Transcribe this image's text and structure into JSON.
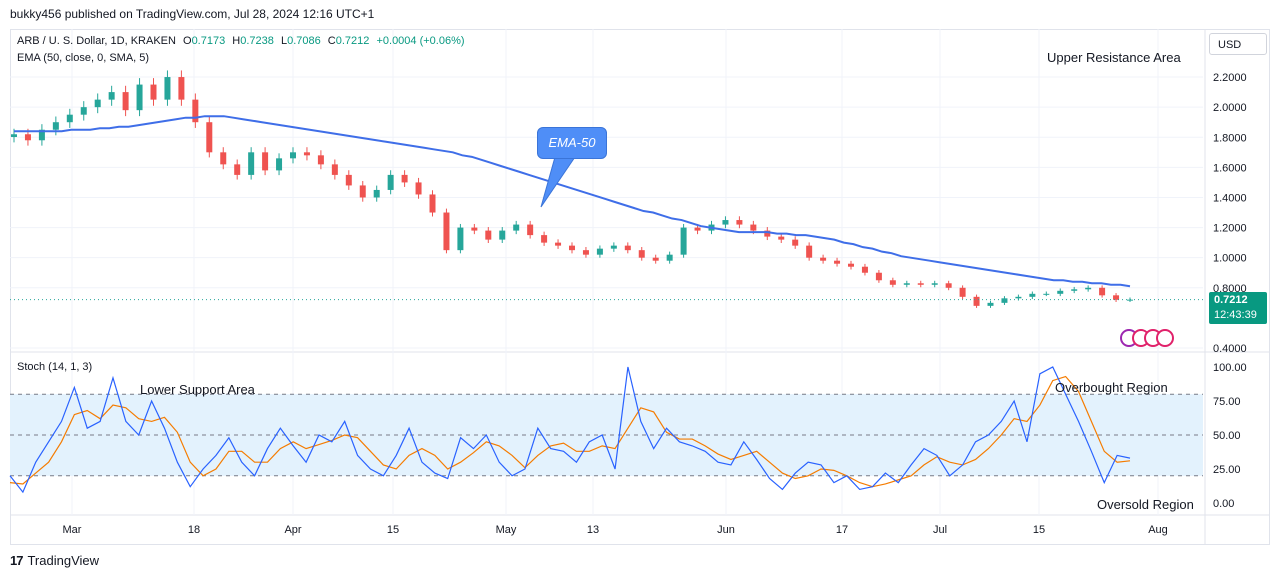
{
  "header": {
    "publish_line": "bukky456 published on TradingView.com, Jul 28, 2024 12:16 UTC+1"
  },
  "legend": {
    "symbol": "ARB / U. S. Dollar, 1D, KRAKEN",
    "o_label": "O",
    "o": "0.7173",
    "h_label": "H",
    "h": "0.7238",
    "l_label": "L",
    "l": "0.7086",
    "c_label": "C",
    "c": "0.7212",
    "change": "+0.0004 (+0.06%)",
    "ema": "EMA (50, close, 0, SMA, 5)",
    "stoch": "Stoch (14, 1, 3)"
  },
  "currency": "USD",
  "price_tag": {
    "price": "0.7212",
    "countdown": "12:43:39"
  },
  "annotations": {
    "upper_resistance": "Upper Resistance Area",
    "lower_support": "Lower Support Area",
    "overbought": "Overbought Region",
    "oversold": "Oversold Region",
    "ema_callout": "EMA-50"
  },
  "footer": {
    "brand": "TradingView"
  },
  "colors": {
    "up": "#26a69a",
    "down": "#ef5350",
    "ema": "#3f6ee8",
    "stoch_k": "#2962ff",
    "stoch_d": "#f57c00",
    "band": "#e3f2fd"
  },
  "chart_data": [
    {
      "type": "candlestick",
      "title": "ARB / U. S. Dollar, 1D, KRAKEN",
      "y_ticks": [
        "2.2000",
        "2.0000",
        "1.8000",
        "1.6000",
        "1.4000",
        "1.2000",
        "1.0000",
        "0.8000",
        "0.4000"
      ],
      "x_ticks": [
        "Mar",
        "18",
        "Apr",
        "15",
        "May",
        "13",
        "Jun",
        "17",
        "Jul",
        "15",
        "Aug"
      ],
      "ylim": [
        0.4,
        2.3
      ],
      "last_price": 0.7212,
      "series": [
        {
          "name": "EMA (50, close, 0, SMA, 5)",
          "type": "line",
          "values": [
            1.84,
            1.84,
            1.84,
            1.84,
            1.84,
            1.84,
            1.85,
            1.85,
            1.85,
            1.86,
            1.86,
            1.87,
            1.87,
            1.88,
            1.89,
            1.9,
            1.91,
            1.92,
            1.93,
            1.93,
            1.94,
            1.94,
            1.94,
            1.93,
            1.92,
            1.91,
            1.9,
            1.89,
            1.88,
            1.87,
            1.86,
            1.85,
            1.84,
            1.83,
            1.82,
            1.81,
            1.8,
            1.79,
            1.78,
            1.77,
            1.76,
            1.75,
            1.74,
            1.73,
            1.72,
            1.71,
            1.7,
            1.68,
            1.67,
            1.65,
            1.63,
            1.61,
            1.59,
            1.57,
            1.55,
            1.53,
            1.51,
            1.49,
            1.47,
            1.45,
            1.43,
            1.41,
            1.39,
            1.37,
            1.35,
            1.33,
            1.31,
            1.3,
            1.28,
            1.26,
            1.25,
            1.23,
            1.21,
            1.2,
            1.19,
            1.18,
            1.17,
            1.17,
            1.17,
            1.17,
            1.16,
            1.16,
            1.15,
            1.15,
            1.14,
            1.13,
            1.12,
            1.1,
            1.09,
            1.07,
            1.06,
            1.04,
            1.03,
            1.01,
            1.0,
            0.99,
            0.98,
            0.97,
            0.96,
            0.95,
            0.94,
            0.93,
            0.92,
            0.91,
            0.9,
            0.89,
            0.88,
            0.87,
            0.86,
            0.85,
            0.85,
            0.84,
            0.84,
            0.83,
            0.83,
            0.82,
            0.82,
            0.81
          ]
        },
        {
          "name": "ARB close",
          "type": "candles",
          "values": [
            1.82,
            1.78,
            1.85,
            1.9,
            1.95,
            2.0,
            2.05,
            2.1,
            1.98,
            2.15,
            2.05,
            2.2,
            2.05,
            1.9,
            1.7,
            1.62,
            1.55,
            1.7,
            1.58,
            1.66,
            1.7,
            1.68,
            1.62,
            1.55,
            1.48,
            1.4,
            1.45,
            1.55,
            1.5,
            1.42,
            1.3,
            1.05,
            1.2,
            1.18,
            1.12,
            1.18,
            1.22,
            1.15,
            1.1,
            1.08,
            1.05,
            1.02,
            1.06,
            1.08,
            1.05,
            1.0,
            0.98,
            1.02,
            1.2,
            1.18,
            1.22,
            1.25,
            1.22,
            1.18,
            1.14,
            1.12,
            1.08,
            1.0,
            0.98,
            0.96,
            0.94,
            0.9,
            0.85,
            0.82,
            0.83,
            0.82,
            0.83,
            0.8,
            0.74,
            0.68,
            0.7,
            0.73,
            0.74,
            0.76,
            0.76,
            0.78,
            0.79,
            0.8,
            0.75,
            0.72,
            0.7212
          ]
        }
      ]
    },
    {
      "type": "line",
      "title": "Stoch (14, 1, 3)",
      "y_ticks": [
        "100.00",
        "75.00",
        "50.00",
        "25.00",
        "0.00"
      ],
      "ylim": [
        0,
        100
      ],
      "bands": {
        "upper": 80,
        "middle": 50,
        "lower": 20
      },
      "series": [
        {
          "name": "%K",
          "values": [
            20,
            8,
            30,
            45,
            60,
            85,
            55,
            60,
            92,
            60,
            50,
            75,
            55,
            30,
            12,
            25,
            35,
            48,
            30,
            20,
            40,
            55,
            42,
            30,
            50,
            45,
            60,
            35,
            25,
            20,
            35,
            55,
            30,
            22,
            18,
            48,
            40,
            50,
            30,
            20,
            25,
            55,
            40,
            38,
            30,
            45,
            50,
            25,
            100,
            60,
            40,
            55,
            45,
            42,
            38,
            30,
            28,
            45,
            32,
            18,
            10,
            22,
            30,
            28,
            15,
            20,
            10,
            12,
            22,
            15,
            28,
            40,
            35,
            20,
            28,
            45,
            50,
            60,
            75,
            45,
            95,
            100,
            80,
            60,
            38,
            15,
            35,
            33
          ]
        },
        {
          "name": "%D",
          "values": [
            15,
            14,
            22,
            30,
            45,
            65,
            68,
            62,
            72,
            70,
            62,
            60,
            63,
            52,
            30,
            20,
            25,
            38,
            38,
            30,
            30,
            40,
            45,
            40,
            43,
            46,
            50,
            48,
            38,
            28,
            25,
            35,
            40,
            35,
            25,
            30,
            37,
            45,
            42,
            35,
            26,
            35,
            42,
            44,
            38,
            38,
            42,
            40,
            55,
            70,
            67,
            52,
            47,
            47,
            42,
            36,
            32,
            35,
            38,
            30,
            22,
            18,
            20,
            25,
            24,
            20,
            15,
            12,
            14,
            17,
            20,
            28,
            34,
            30,
            28,
            32,
            40,
            50,
            62,
            60,
            72,
            90,
            93,
            82,
            60,
            38,
            30,
            31
          ]
        }
      ]
    }
  ]
}
